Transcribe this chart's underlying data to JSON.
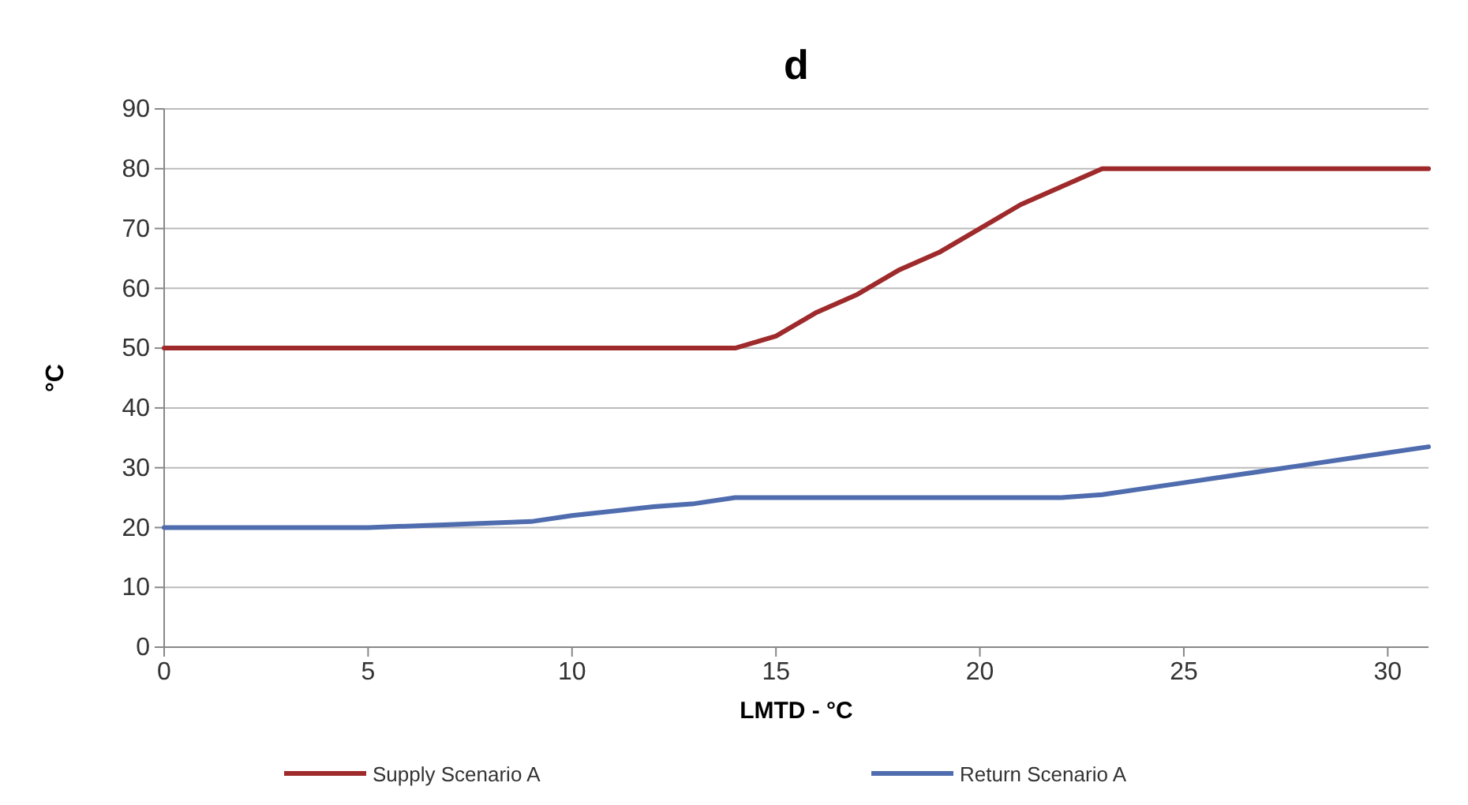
{
  "chart_data": {
    "type": "line",
    "title": "d",
    "xlabel": "LMTD - °C",
    "ylabel": "°C",
    "xlim": [
      0,
      31
    ],
    "xticks": [
      0,
      5,
      10,
      15,
      20,
      25,
      30
    ],
    "ylim": [
      0,
      90
    ],
    "yticks": [
      0,
      10,
      20,
      30,
      40,
      50,
      60,
      70,
      80,
      90
    ],
    "grid": "y",
    "legend": "bottom",
    "line_style": "solid",
    "marker": "none",
    "series": [
      {
        "name": "Supply Scenario A",
        "color": "#9e2a2b",
        "x": [
          0,
          5,
          10,
          14,
          15,
          16,
          17,
          18,
          19,
          20,
          21,
          22,
          23,
          25,
          31
        ],
        "values": [
          50,
          50,
          50,
          50,
          52,
          56,
          59,
          63,
          66,
          70,
          74,
          77,
          80,
          80,
          80
        ]
      },
      {
        "name": "Return Scenario A",
        "color": "#4f6cae",
        "x": [
          0,
          5,
          7,
          9,
          10,
          12,
          13,
          14,
          18,
          22,
          23,
          25,
          26,
          27,
          28,
          29,
          31
        ],
        "values": [
          20,
          20,
          20.5,
          21,
          22,
          23.5,
          24,
          25,
          25,
          25,
          25.5,
          27.5,
          28.5,
          29.5,
          30.5,
          31.5,
          33.5
        ]
      }
    ]
  }
}
